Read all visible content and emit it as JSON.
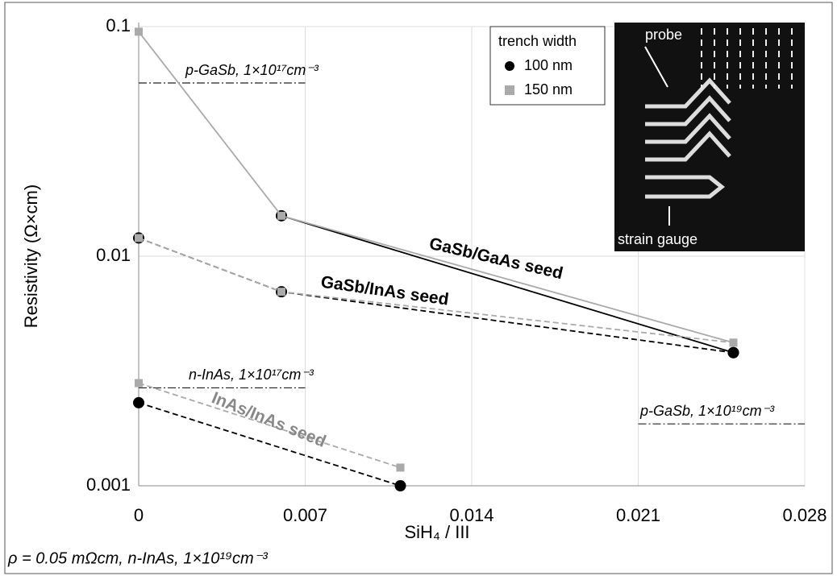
{
  "chart_data": {
    "type": "line",
    "xlabel": "SiH₄ / III",
    "ylabel": "Resistivity (Ω×cm)",
    "yscale": "log",
    "xlim": [
      0,
      0.028
    ],
    "xticks": [
      0,
      0.007,
      0.014,
      0.021,
      0.028
    ],
    "ylim": [
      0.001,
      0.1
    ],
    "yticks": [
      0.1,
      0.01,
      0.001
    ],
    "grid": true,
    "legend_title": "trench width",
    "series": [
      {
        "name": "100 nm",
        "color": "#000000",
        "marker": "circle",
        "dash": false,
        "x": [
          0.006,
          0.025
        ],
        "values": [
          0.015,
          0.0038
        ]
      },
      {
        "name": "150 nm",
        "color": "#aaaaaa",
        "marker": "square",
        "dash": false,
        "x": [
          0,
          0.006,
          0.025
        ],
        "values": [
          0.095,
          0.015,
          0.0042
        ]
      },
      {
        "name": "100 nm",
        "color": "#000000",
        "marker": "circle",
        "dash": true,
        "x": [
          0,
          0.006,
          0.025
        ],
        "values": [
          0.012,
          0.007,
          0.0038
        ]
      },
      {
        "name": "150 nm",
        "color": "#aaaaaa",
        "marker": "square",
        "dash": true,
        "x": [
          0,
          0.006,
          0.025
        ],
        "values": [
          0.012,
          0.007,
          0.0042
        ]
      },
      {
        "name": "100 nm",
        "color": "#000000",
        "marker": "circle",
        "dash": true,
        "x": [
          0,
          0.011
        ],
        "values": [
          0.0023,
          0.001
        ]
      },
      {
        "name": "150 nm",
        "color": "#aaaaaa",
        "marker": "square",
        "dash": true,
        "x": [
          0,
          0.011
        ],
        "values": [
          0.0028,
          0.0012
        ]
      }
    ],
    "group_labels": [
      "GaSb/GaAs seed",
      "GaSb/InAs seed",
      "InAs/InAs seed"
    ],
    "reference_lines": [
      {
        "label": "p-GaSb, 1×10¹⁷cm⁻³",
        "value": 0.0568,
        "x": [
          0,
          0.007
        ]
      },
      {
        "label": "n-InAs, 1×10¹⁷cm⁻³",
        "value": 0.00267,
        "x": [
          0,
          0.007
        ]
      },
      {
        "label": "p-GaSb, 1×10¹⁹cm⁻³",
        "value": 0.00186,
        "x": [
          0.021,
          0.028
        ]
      }
    ],
    "inset_labels": [
      "probe",
      "strain gauge"
    ],
    "footnote": "ρ = 0.05 mΩcm, n-InAs, 1×10¹⁹cm⁻³"
  }
}
